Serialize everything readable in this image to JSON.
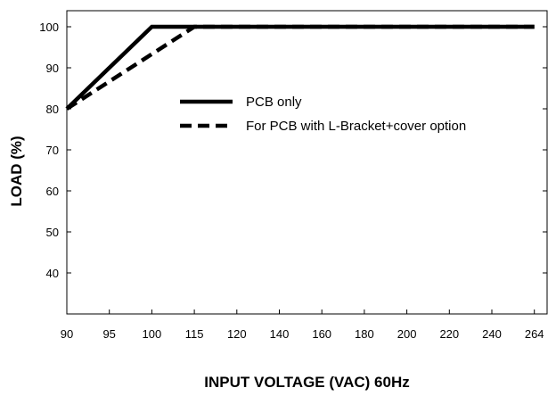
{
  "chart_data": {
    "type": "line",
    "xlabel": "INPUT VOLTAGE (VAC) 60Hz",
    "ylabel": "LOAD (%)",
    "x_categories": [
      "90",
      "95",
      "100",
      "115",
      "120",
      "140",
      "160",
      "180",
      "200",
      "220",
      "240",
      "264"
    ],
    "y_ticks": [
      40,
      50,
      60,
      70,
      80,
      90,
      100
    ],
    "ylim": [
      30,
      105
    ],
    "grid": false,
    "legend_position": "center",
    "series": [
      {
        "name": "PCB only",
        "style": "solid",
        "color": "#000000",
        "points": [
          {
            "x": "90",
            "y": 80
          },
          {
            "x": "100",
            "y": 100
          },
          {
            "x": "264",
            "y": 100
          }
        ]
      },
      {
        "name": "For PCB with L-Bracket+cover option",
        "style": "dashed",
        "color": "#000000",
        "points": [
          {
            "x": "90",
            "y": 80
          },
          {
            "x": "115",
            "y": 100
          },
          {
            "x": "264",
            "y": 100
          }
        ]
      }
    ]
  }
}
